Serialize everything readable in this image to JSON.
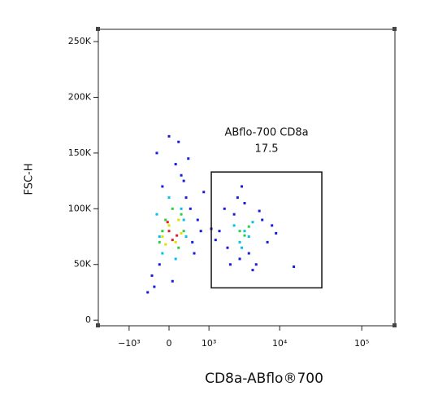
{
  "chart_data": {
    "type": "scatter",
    "xlabel": "CD8a-ABflo®700",
    "ylabel": "FSC-H",
    "xscale": "biexponential",
    "xlim": [
      -3000,
      250000
    ],
    "ylim": [
      -5000,
      261000
    ],
    "xticks": [
      {
        "value": -1000,
        "label": "−10³"
      },
      0,
      {
        "value": 1000,
        "label": "10³"
      },
      {
        "value": 10000,
        "label": "10⁴"
      },
      {
        "value": 100000,
        "label": "10⁵"
      }
    ],
    "yticks": [
      0,
      {
        "value": 50000,
        "label": "50K"
      },
      {
        "value": 100000,
        "label": "100K"
      },
      {
        "value": 150000,
        "label": "150K"
      },
      {
        "value": 200000,
        "label": "200K"
      },
      {
        "value": 250000,
        "label": "250K"
      }
    ],
    "gate": {
      "name": "ABflo-700 CD8a",
      "value": 17.5,
      "x": [
        1100,
        33000
      ],
      "y": [
        29000,
        133000
      ]
    },
    "series": [
      {
        "color": "#1a1ae0",
        "x": [
          -400,
          -300,
          -200,
          -100,
          0,
          100,
          200,
          300,
          400,
          500,
          600,
          -250,
          150,
          350,
          -150,
          50,
          250,
          450,
          700,
          800,
          1500,
          2000,
          2500,
          3000,
          3500,
          4000,
          5000,
          6000,
          7000,
          8000,
          1800,
          2200,
          2800,
          4500,
          9000,
          1300,
          3200,
          5500,
          1100,
          15000
        ],
        "y": [
          25000,
          40000,
          150000,
          120000,
          165000,
          140000,
          130000,
          110000,
          100000,
          60000,
          90000,
          30000,
          160000,
          145000,
          50000,
          35000,
          125000,
          70000,
          80000,
          115000,
          80000,
          65000,
          95000,
          55000,
          105000,
          60000,
          50000,
          90000,
          70000,
          85000,
          100000,
          50000,
          110000,
          45000,
          78000,
          72000,
          120000,
          98000,
          82000,
          48000
        ]
      },
      {
        "color": "#00c0f0",
        "x": [
          -200,
          -100,
          0,
          100,
          200,
          300,
          -150,
          250,
          2500,
          3000,
          3500,
          4000,
          4500,
          3200
        ],
        "y": [
          95000,
          60000,
          110000,
          55000,
          100000,
          75000,
          75000,
          90000,
          85000,
          70000,
          80000,
          75000,
          88000,
          65000
        ]
      },
      {
        "color": "#2ecc40",
        "x": [
          -150,
          -50,
          50,
          150,
          250,
          -100,
          200,
          3000,
          3500,
          4000
        ],
        "y": [
          70000,
          90000,
          100000,
          65000,
          80000,
          80000,
          95000,
          80000,
          76000,
          84000
        ]
      },
      {
        "color": "#e0e000",
        "x": [
          -100,
          0,
          100,
          200,
          -50,
          150
        ],
        "y": [
          75000,
          85000,
          70000,
          78000,
          68000,
          90000
        ]
      },
      {
        "color": "#e02020",
        "x": [
          0,
          50,
          -20,
          120
        ],
        "y": [
          80000,
          72000,
          88000,
          76000
        ]
      }
    ]
  }
}
